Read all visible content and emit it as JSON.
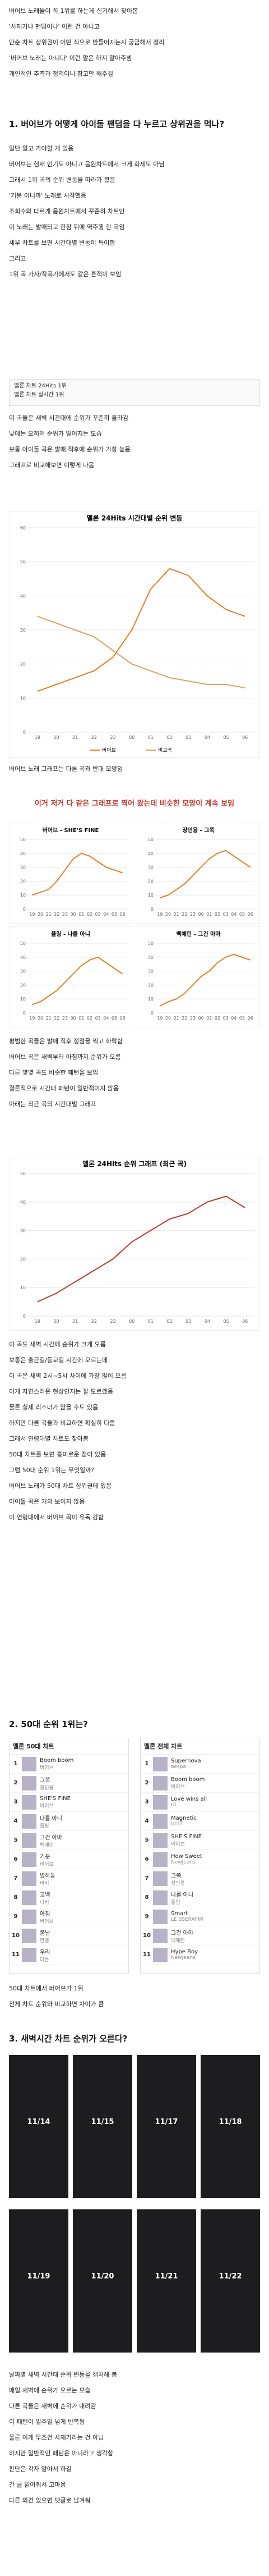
{
  "document": {
    "intro": [
      "버어브 노래들이 꼭 1위를 하는게 신기해서 찾아봄",
      "'사재기냐 팬덤이냐' 이런 건 아니고",
      "단순 차트 상위권이 어떤 식으로 만들어지는지 궁금해서 정리",
      "'버어브 노래는 아니다' 이런 말은 하지 말아주셈",
      "개인적인 추측과 정리이니 참고만 해주길"
    ],
    "h1": "1. 버어브가 어떻게 아이돌 팬덤을 다 누르고 상위권을 먹나?",
    "textA": [
      "일단 알고 가야할 게 있음",
      "버어브는 현재 인기도 아니고 음원차트에서 크게 화제도 아님",
      "그래서 1위 곡의 순위 변동을 따라가 봤음",
      "'기분 이니까' 노래로 시작했음",
      "조회수와 다르게 음원차트에서 꾸준히 차트인",
      "이 노래는 발매되고 한참 뒤에 역주행 한 곡임",
      "세부 차트를 보면 시간대별 변동이 특이함",
      "그리고",
      "1위 곡 가사/작곡가에서도 같은 흔적이 보임"
    ],
    "listing": [
      "멜론 차트 24Hits 1위",
      "멜론 차트 실시간 1위"
    ],
    "textB": [
      "이 곡들은 새벽 시간대에 순위가 꾸준히 올라감",
      "낮에는 오히려 순위가 떨어지는 모습",
      "보통 아이돌 곡은 발매 직후에 순위가 가장 높음",
      "그래프로 비교해보면 이렇게 나옴"
    ],
    "textC": [
      "버어브 노래 그래프는 다른 곡과 반대 모양임"
    ],
    "hc": "이거 저거 다 같은 그래프로 찍어 봤는데 비슷한 모양이 계속 보임",
    "textD": [
      "평범한 곡들은 발매 직후 정점을 찍고 하락함",
      "버어브 곡은 새벽부터 아침까지 순위가 오름",
      "다른 몇몇 곡도 비슷한 패턴을 보임",
      "결론적으로 시간대 패턴이 일반적이지 않음",
      "아래는 최근 곡의 시간대별 그래프"
    ],
    "textE": [
      "이 곡도 새벽 시간에 순위가 크게 오름",
      "보통은 출근길/등교길 시간에 오르는데",
      "이 곡은 새벽 2시~5시 사이에 가장 많이 오름",
      "이게 자연스러운 현상인지는 잘 모르겠음",
      "물론 실제 리스너가 많을 수도 있음",
      "하지만 다른 곡들과 비교하면 확실히 다름",
      "그래서 연령대별 차트도 찾아봄",
      "50대 차트를 보면 흥미로운 점이 있음",
      "그럼 50대 순위 1위는 무엇일까?",
      "버어브 노래가 50대 차트 상위권에 있음",
      "아이돌 곡은 거의 보이지 않음",
      "이 연령대에서 버어브 곡이 유독 강함"
    ],
    "h2": "2. 50대 순위 1위는?",
    "ranks": [
      {
        "title": "멜론 50대 차트",
        "items": [
          {
            "rank": "1",
            "song": "Boom boom",
            "artist": "버어브"
          },
          {
            "rank": "2",
            "song": "그쪽",
            "artist": "장인용"
          },
          {
            "rank": "3",
            "song": "SHE'S FINE",
            "artist": "버어브"
          },
          {
            "rank": "4",
            "song": "나를 아니",
            "artist": "플링"
          },
          {
            "rank": "5",
            "song": "그건 아마",
            "artist": "백예린"
          },
          {
            "rank": "6",
            "song": "기분",
            "artist": "버어브"
          },
          {
            "rank": "7",
            "song": "밤하늘",
            "artist": "비비"
          },
          {
            "rank": "8",
            "song": "고백",
            "artist": "나비"
          },
          {
            "rank": "9",
            "song": "아침",
            "artist": "버어브"
          },
          {
            "rank": "10",
            "song": "봄날",
            "artist": "한결"
          },
          {
            "rank": "11",
            "song": "우리",
            "artist": "다온"
          }
        ]
      },
      {
        "title": "멜론 전체 차트",
        "items": [
          {
            "rank": "1",
            "song": "Supernova",
            "artist": "aespa"
          },
          {
            "rank": "2",
            "song": "Boom boom",
            "artist": "버어브"
          },
          {
            "rank": "3",
            "song": "Love wins all",
            "artist": "IU"
          },
          {
            "rank": "4",
            "song": "Magnetic",
            "artist": "ILLIT"
          },
          {
            "rank": "5",
            "song": "SHE'S FINE",
            "artist": "버어브"
          },
          {
            "rank": "6",
            "song": "How Sweet",
            "artist": "NewJeans"
          },
          {
            "rank": "7",
            "song": "그쪽",
            "artist": "장인용"
          },
          {
            "rank": "8",
            "song": "나를 아니",
            "artist": "플링"
          },
          {
            "rank": "9",
            "song": "Smart",
            "artist": "LE SSERAFIM"
          },
          {
            "rank": "10",
            "song": "그건 아마",
            "artist": "백예린"
          },
          {
            "rank": "11",
            "song": "Hype Boy",
            "artist": "NewJeans"
          }
        ]
      }
    ],
    "textF": [
      "50대 차트에서 버어브가 1위",
      "전체 차트 순위와 비교하면 차이가 큼"
    ],
    "h3": "3. 새벽시간 차트 순위가 오른다?",
    "panels": [
      "11/14",
      "11/15",
      "11/17",
      "11/18",
      "11/19",
      "11/20",
      "11/21",
      "11/22"
    ],
    "textG": [
      "날짜별 새벽 시간대 순위 변동을 캡처해 봄",
      "매일 새벽에 순위가 오르는 모습",
      "다른 곡들은 새벽에 순위가 내려감",
      "이 패턴이 일주일 넘게 반복됨",
      "물론 이게 무조건 사재기라는 건 아님",
      "하지만 일반적인 패턴은 아니라고 생각함",
      "판단은 각자 알아서 하길",
      "긴 글 읽어줘서 고마움",
      "다른 의견 있으면 댓글로 남겨줘"
    ]
  },
  "chart_data": [
    {
      "type": "line",
      "title": "멜론 24Hits 시간대별 순위 변동",
      "categories": [
        "19",
        "20",
        "21",
        "22",
        "23",
        "00",
        "01",
        "02",
        "03",
        "04",
        "05",
        "06"
      ],
      "series": [
        {
          "name": "버어브",
          "color": "#e67e22",
          "values": [
            12,
            14,
            16,
            18,
            22,
            30,
            42,
            48,
            46,
            40,
            36,
            34
          ]
        },
        {
          "name": "비교곡",
          "color": "#d9a066",
          "values": [
            34,
            32,
            30,
            28,
            24,
            20,
            18,
            16,
            15,
            14,
            14,
            13
          ]
        }
      ],
      "ylim": [
        0,
        60
      ],
      "yticks": [
        0,
        10,
        20,
        30,
        40,
        50,
        60
      ]
    },
    {
      "type": "line",
      "title": "버어브 - SHE'S FINE",
      "categories": [
        "19",
        "20",
        "21",
        "22",
        "23",
        "00",
        "01",
        "02",
        "03",
        "04",
        "05",
        "06"
      ],
      "series": [
        {
          "name": "순위",
          "color": "#e67e22",
          "values": [
            10,
            12,
            14,
            20,
            28,
            36,
            40,
            38,
            34,
            30,
            28,
            26
          ]
        }
      ],
      "ylim": [
        0,
        50
      ],
      "yticks": [
        0,
        10,
        20,
        30,
        40,
        50
      ]
    },
    {
      "type": "line",
      "title": "장인용 - 그쪽",
      "categories": [
        "19",
        "20",
        "21",
        "22",
        "23",
        "00",
        "01",
        "02",
        "03",
        "04",
        "05",
        "06"
      ],
      "series": [
        {
          "name": "순위",
          "color": "#e67e22",
          "values": [
            8,
            10,
            14,
            18,
            24,
            30,
            36,
            40,
            42,
            38,
            34,
            30
          ]
        }
      ],
      "ylim": [
        0,
        50
      ],
      "yticks": [
        0,
        10,
        20,
        30,
        40,
        50
      ]
    },
    {
      "type": "line",
      "title": "플링 - 나를 아니",
      "categories": [
        "19",
        "20",
        "21",
        "22",
        "23",
        "00",
        "01",
        "02",
        "03",
        "04",
        "05",
        "06"
      ],
      "series": [
        {
          "name": "순위",
          "color": "#e67e22",
          "values": [
            6,
            8,
            12,
            16,
            22,
            28,
            34,
            38,
            40,
            36,
            32,
            28
          ]
        }
      ],
      "ylim": [
        0,
        50
      ],
      "yticks": [
        0,
        10,
        20,
        30,
        40,
        50
      ]
    },
    {
      "type": "line",
      "title": "백예린 - 그건 아마",
      "categories": [
        "19",
        "20",
        "21",
        "22",
        "23",
        "00",
        "01",
        "02",
        "03",
        "04",
        "05",
        "06"
      ],
      "series": [
        {
          "name": "순위",
          "color": "#e67e22",
          "values": [
            5,
            8,
            10,
            14,
            20,
            26,
            30,
            36,
            40,
            42,
            40,
            38
          ]
        }
      ],
      "ylim": [
        0,
        50
      ],
      "yticks": [
        0,
        10,
        20,
        30,
        40,
        50
      ]
    },
    {
      "type": "line",
      "title": "멜론 24Hits 순위 그래프 (최근 곡)",
      "categories": [
        "19",
        "20",
        "21",
        "22",
        "23",
        "00",
        "01",
        "02",
        "03",
        "04",
        "05",
        "06"
      ],
      "series": [
        {
          "name": "순위",
          "color": "#c0392b",
          "values": [
            5,
            8,
            12,
            16,
            20,
            26,
            30,
            34,
            36,
            40,
            42,
            38
          ]
        }
      ],
      "ylim": [
        0,
        50
      ],
      "yticks": [
        0,
        10,
        20,
        30,
        40,
        50
      ]
    }
  ]
}
